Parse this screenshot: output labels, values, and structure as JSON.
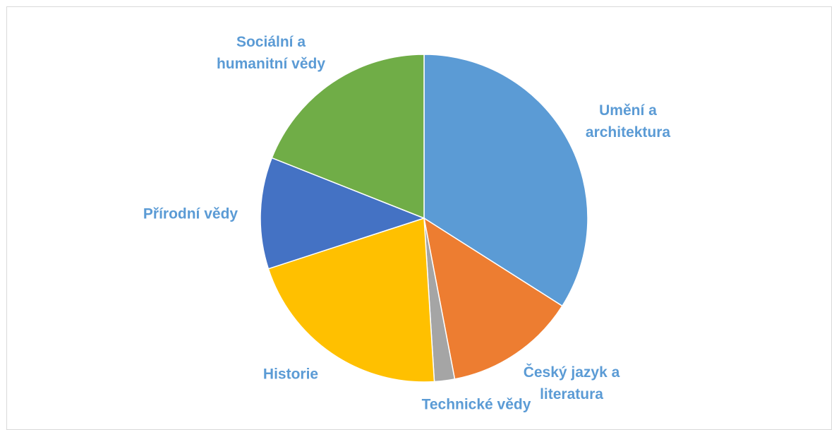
{
  "chart_data": {
    "type": "pie",
    "categories": [
      "Umění a architektura",
      "Český jazyk a literatura",
      "Technické vědy",
      "Historie",
      "Přírodní vědy",
      "Sociální a humanitní vědy"
    ],
    "values": [
      34,
      13,
      2,
      21,
      11,
      19
    ],
    "colors": [
      "#5b9bd5",
      "#ed7d31",
      "#a5a5a5",
      "#ffc000",
      "#4472c4",
      "#70ad47"
    ],
    "label_color": "#5b9bd5"
  }
}
